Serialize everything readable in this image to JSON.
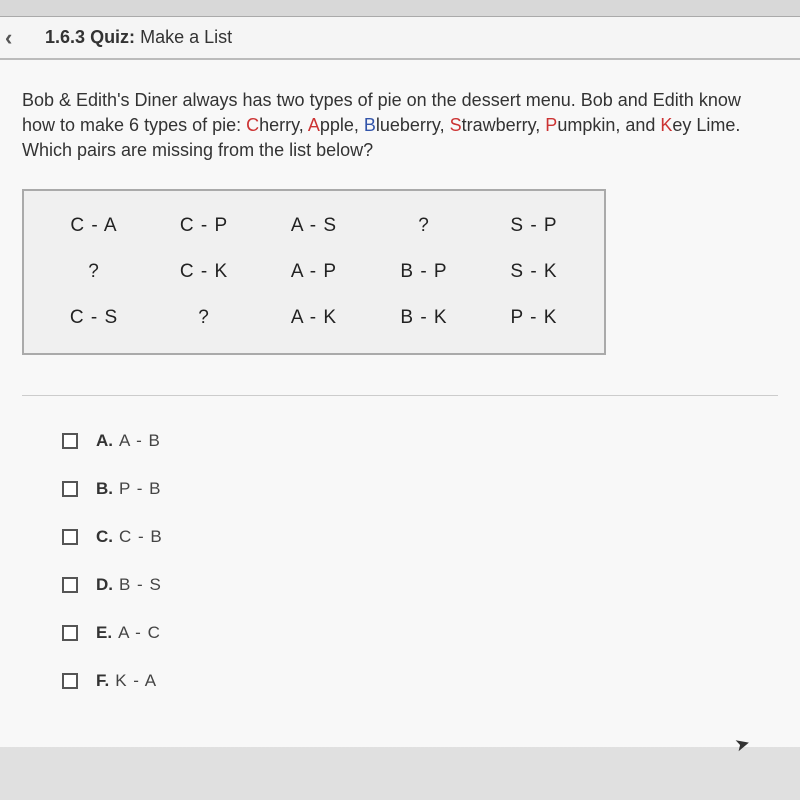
{
  "header": {
    "number": "1.6.3",
    "label": "Quiz:",
    "title": "Make a List"
  },
  "question": {
    "intro": "Bob & Edith's Diner always has two types of pie on the dessert menu. Bob and Edith know how to make 6 types of pie: ",
    "pies": [
      {
        "first": "C",
        "rest": "herry",
        "color": "red"
      },
      {
        "first": "A",
        "rest": "pple",
        "color": "red"
      },
      {
        "first": "B",
        "rest": "lueberry",
        "color": "blue"
      },
      {
        "first": "S",
        "rest": "trawberry",
        "color": "red"
      },
      {
        "first": "P",
        "rest": "umpkin",
        "color": "red"
      },
      {
        "first": "K",
        "rest": "ey Lime",
        "color": "red"
      }
    ],
    "outro": ". Which pairs are missing from the list below?"
  },
  "table": {
    "rows": [
      [
        "C - A",
        "C - P",
        "A - S",
        "?",
        "S - P"
      ],
      [
        "?",
        "C - K",
        "A - P",
        "B - P",
        "S - K"
      ],
      [
        "C - S",
        "?",
        "A - K",
        "B - K",
        "P - K"
      ]
    ]
  },
  "options": [
    {
      "letter": "A.",
      "text": "A - B"
    },
    {
      "letter": "B.",
      "text": "P - B"
    },
    {
      "letter": "C.",
      "text": "C - B"
    },
    {
      "letter": "D.",
      "text": "B - S"
    },
    {
      "letter": "E.",
      "text": "A - C"
    },
    {
      "letter": "F.",
      "text": "K - A"
    }
  ]
}
